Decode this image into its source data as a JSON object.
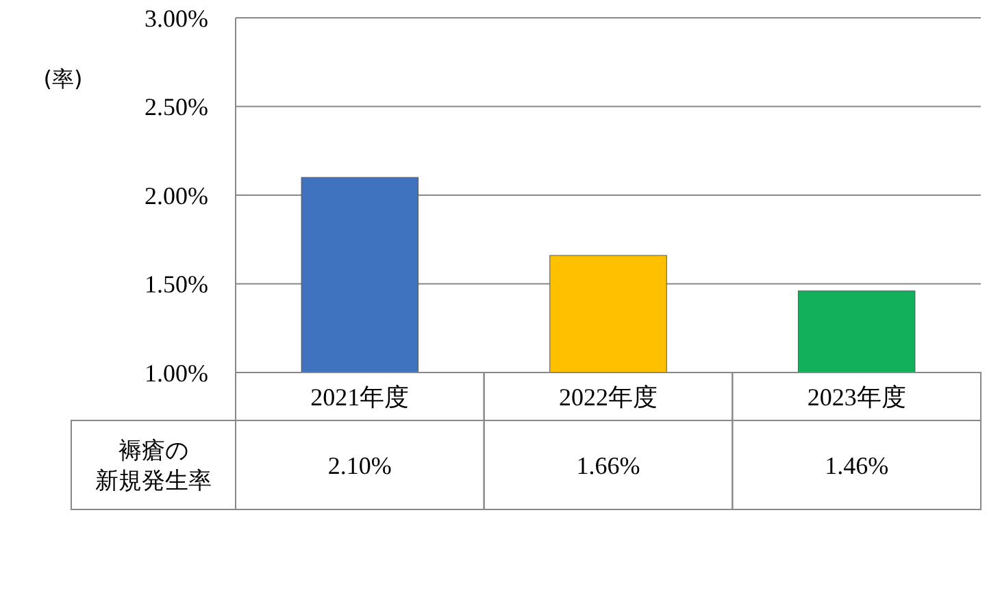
{
  "chart_data": {
    "type": "bar",
    "ylabel": "(率)",
    "categories": [
      "2021年度",
      "2022年度",
      "2023年度"
    ],
    "series": [
      {
        "name": "褥瘡の新規発生率",
        "colors": [
          "#3f73c0",
          "#ffc000",
          "#12b05a"
        ],
        "values": [
          2.1,
          1.66,
          1.46
        ],
        "value_labels": [
          "2.10%",
          "1.66%",
          "1.46%"
        ]
      }
    ],
    "ylim": [
      1,
      3
    ],
    "yticks": [
      {
        "value": 1,
        "label": "1.00%"
      },
      {
        "value": 1.5,
        "label": "1.50%"
      },
      {
        "value": 2,
        "label": "2.00%"
      },
      {
        "value": 2.5,
        "label": "2.50%"
      },
      {
        "value": 3,
        "label": "3.00%"
      }
    ],
    "grid": "y"
  }
}
